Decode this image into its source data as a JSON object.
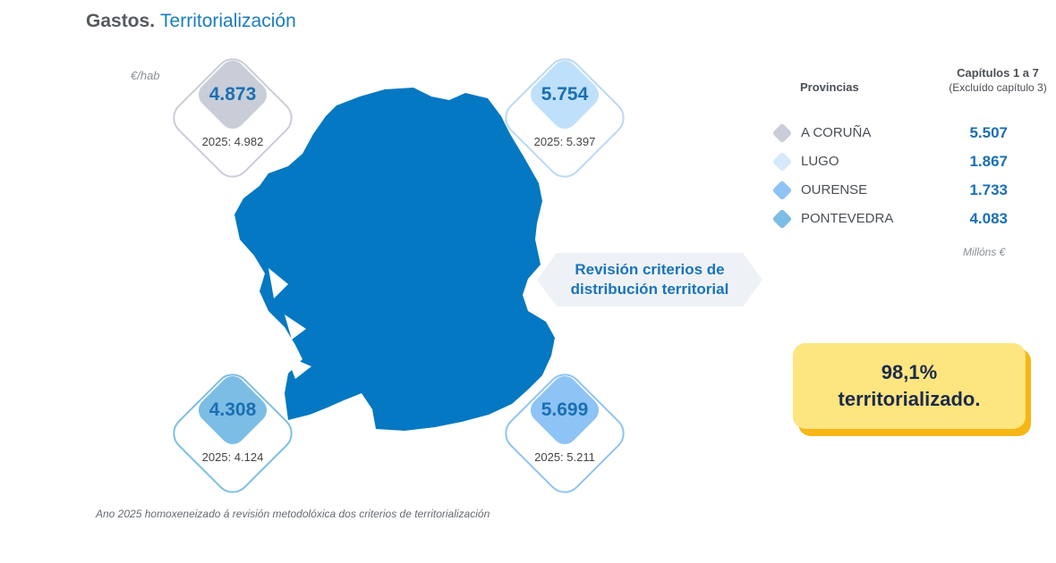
{
  "header": {
    "title_bold": "Gastos.",
    "title_light": "Territorialización"
  },
  "unit_label": "€/hab",
  "callout_lines": [
    "Revisión criterios de",
    "distribución territorial"
  ],
  "legend": {
    "header_provinces": "Provincias",
    "header_chapters": "Capítulos 1 a 7",
    "header_chapters_note": "(Excluído capítulo 3)",
    "unit": "Millóns €",
    "rows": [
      {
        "name": "A CORUÑA",
        "value": "5.507",
        "color": "#c8cdd8"
      },
      {
        "name": "LUGO",
        "value": "1.867",
        "color": "#d6e9fb"
      },
      {
        "name": "OURENSE",
        "value": "1.733",
        "color": "#8ec3f5"
      },
      {
        "name": "PONTEVEDRA",
        "value": "4.083",
        "color": "#7cbde5"
      }
    ]
  },
  "badges": [
    {
      "province": "A CORUÑA",
      "value": "4.873",
      "prev": "2025: 4.982",
      "fill": "#c8cdd8",
      "border": "#c8cdd8"
    },
    {
      "province": "LUGO",
      "value": "5.754",
      "prev": "2025: 5.397",
      "fill": "#bfe0fb",
      "border": "#b9d8f3"
    },
    {
      "province": "PONTEVEDRA",
      "value": "4.308",
      "prev": "2025: 4.124",
      "fill": "#7cbde5",
      "border": "#7cbde5"
    },
    {
      "province": "OURENSE",
      "value": "5.699",
      "prev": "2025: 5.211",
      "fill": "#8ec3f5",
      "border": "#8ec3f5"
    }
  ],
  "summary": {
    "line1": "98,1%",
    "line2": "territorializado."
  },
  "footnote": "Ano 2025 homoxeneizado á revisión metodolóxica dos criterios de territorialización",
  "colors": {
    "map": "#0478c2",
    "accent": "#1a7cc0",
    "summary_fill": "#fde57f",
    "summary_shadow": "#f6b616"
  },
  "chart_data": {
    "type": "table",
    "unit": "€/hab",
    "series": [
      {
        "name": "2025",
        "values": [
          4982,
          5397,
          4124,
          5211
        ]
      }
    ],
    "categories": [
      "A CORUÑA",
      "LUGO",
      "PONTEVEDRA",
      "OURENSE"
    ],
    "values": [
      4873,
      5754,
      4308,
      5699
    ],
    "legend_values_millions_eur": [
      5507,
      1867,
      1733,
      4083
    ],
    "legend_categories": [
      "A CORUÑA",
      "LUGO",
      "OURENSE",
      "PONTEVEDRA"
    ]
  }
}
